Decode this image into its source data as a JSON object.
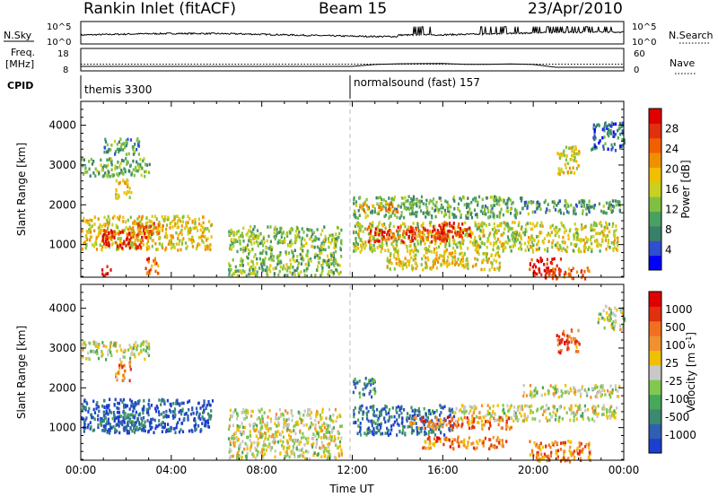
{
  "header": {
    "station": "Rankin Inlet (fitACF)",
    "beam": "Beam 15",
    "date": "23/Apr/2010"
  },
  "strip_nsky": {
    "left_label": "N.Sky",
    "right_label": "N.Search",
    "left_ticks": [
      "10^5",
      "10^0"
    ],
    "right_ticks": [
      "10^5",
      "10^0"
    ]
  },
  "strip_freq": {
    "left_label_1": "Freq.",
    "left_label_2": "[MHz]",
    "right_label": "Nave",
    "left_ticks": [
      "18",
      "8"
    ],
    "right_ticks": [
      "60",
      "0"
    ],
    "freq_value": 10,
    "nave_value": 18
  },
  "cpid": {
    "label": "CPID",
    "modes": [
      {
        "name": "themis 3300",
        "start_hour": 0
      },
      {
        "name": "normalsound (fast) 157",
        "start_hour": 12
      }
    ]
  },
  "chart_data": [
    {
      "type": "heatmap",
      "name": "power",
      "ylabel": "Slant Range [km]",
      "xlabel": "Time UT",
      "x_ticks": [
        "00:00",
        "04:00",
        "08:00",
        "12:00",
        "16:00",
        "20:00",
        "00:00"
      ],
      "xlim_hours": [
        0,
        24
      ],
      "y_ticks": [
        1000,
        2000,
        3000,
        4000
      ],
      "ylim": [
        180,
        4600
      ],
      "colorbar": {
        "label": "Power [dB]",
        "ticks": [
          "4",
          "8",
          "12",
          "16",
          "20",
          "24",
          "28"
        ],
        "colors": [
          "#0000ff",
          "#2f4fd0",
          "#3a7f6a",
          "#4aa060",
          "#7fc040",
          "#c8d020",
          "#f0c000",
          "#f09000",
          "#f06000",
          "#e03010",
          "#e00000"
        ]
      },
      "regions": [
        {
          "t0": 0.0,
          "t1": 5.8,
          "r0": 900,
          "r1": 1750,
          "level": 0.55
        },
        {
          "t0": 0.9,
          "t1": 2.8,
          "r0": 950,
          "r1": 1400,
          "level": 0.92
        },
        {
          "t0": 2.2,
          "t1": 3.6,
          "r0": 1200,
          "r1": 1600,
          "level": 0.75
        },
        {
          "t0": 0.0,
          "t1": 3.0,
          "r0": 2750,
          "r1": 3200,
          "level": 0.35
        },
        {
          "t0": 1.0,
          "t1": 2.6,
          "r0": 3300,
          "r1": 3700,
          "level": 0.3
        },
        {
          "t0": 1.5,
          "t1": 2.2,
          "r0": 2200,
          "r1": 2700,
          "level": 0.6
        },
        {
          "t0": 0.9,
          "t1": 1.3,
          "r0": 250,
          "r1": 500,
          "level": 0.95
        },
        {
          "t0": 2.8,
          "t1": 3.4,
          "r0": 300,
          "r1": 700,
          "level": 0.8
        },
        {
          "t0": 12.0,
          "t1": 23.7,
          "r0": 850,
          "r1": 1600,
          "level": 0.5
        },
        {
          "t0": 12.5,
          "t1": 16.2,
          "r0": 1100,
          "r1": 1500,
          "level": 0.85
        },
        {
          "t0": 15.8,
          "t1": 17.2,
          "r0": 1200,
          "r1": 1600,
          "level": 0.9
        },
        {
          "t0": 12.0,
          "t1": 19.5,
          "r0": 1700,
          "r1": 2250,
          "level": 0.35
        },
        {
          "t0": 12.3,
          "t1": 14.0,
          "r0": 1850,
          "r1": 2100,
          "level": 0.65
        },
        {
          "t0": 19.5,
          "t1": 23.8,
          "r0": 1800,
          "r1": 2150,
          "level": 0.3
        },
        {
          "t0": 13.5,
          "t1": 18.5,
          "r0": 400,
          "r1": 850,
          "level": 0.55
        },
        {
          "t0": 19.8,
          "t1": 21.2,
          "r0": 250,
          "r1": 700,
          "level": 0.92
        },
        {
          "t0": 20.5,
          "t1": 22.5,
          "r0": 180,
          "r1": 450,
          "level": 0.8
        },
        {
          "t0": 22.5,
          "t1": 24.0,
          "r0": 3400,
          "r1": 4100,
          "level": 0.2
        },
        {
          "t0": 21.0,
          "t1": 22.0,
          "r0": 2800,
          "r1": 3500,
          "level": 0.55
        },
        {
          "t0": 6.5,
          "t1": 11.5,
          "r0": 250,
          "r1": 1500,
          "level": 0.4
        }
      ]
    },
    {
      "type": "heatmap",
      "name": "velocity",
      "ylabel": "Slant Range [km]",
      "xlabel": "Time UT",
      "x_ticks": [
        "00:00",
        "04:00",
        "08:00",
        "12:00",
        "16:00",
        "20:00",
        "00:00"
      ],
      "xlim_hours": [
        0,
        24
      ],
      "y_ticks": [
        1000,
        2000,
        3000,
        4000
      ],
      "ylim": [
        180,
        4600
      ],
      "colorbar": {
        "label": "Velocity [m s^-1]",
        "ticks": [
          "1000",
          "500",
          "100",
          "25",
          "-25",
          "-100",
          "-500",
          "-1000"
        ],
        "colors": [
          "#1c3fd0",
          "#2f5fb0",
          "#3a8a70",
          "#48a85a",
          "#80c850",
          "#c8c8c8",
          "#f0c000",
          "#f09030",
          "#f07020",
          "#e03010",
          "#e00000"
        ]
      },
      "regions": [
        {
          "t0": 0.0,
          "t1": 5.8,
          "r0": 900,
          "r1": 1750,
          "level": 0.1
        },
        {
          "t0": 0.9,
          "t1": 2.8,
          "r0": 950,
          "r1": 1400,
          "level": 0.2
        },
        {
          "t0": 0.0,
          "t1": 3.0,
          "r0": 2750,
          "r1": 3200,
          "level": 0.5
        },
        {
          "t0": 1.5,
          "t1": 2.2,
          "r0": 2200,
          "r1": 2700,
          "level": 0.7
        },
        {
          "t0": 12.0,
          "t1": 16.5,
          "r0": 850,
          "r1": 1600,
          "level": 0.15
        },
        {
          "t0": 16.5,
          "t1": 23.7,
          "r0": 1200,
          "r1": 1600,
          "level": 0.5
        },
        {
          "t0": 14.5,
          "t1": 19.0,
          "r0": 1000,
          "r1": 1300,
          "level": 0.75
        },
        {
          "t0": 12.0,
          "t1": 13.0,
          "r0": 1800,
          "r1": 2300,
          "level": 0.25
        },
        {
          "t0": 19.5,
          "t1": 23.8,
          "r0": 1800,
          "r1": 2100,
          "level": 0.5
        },
        {
          "t0": 15.0,
          "t1": 18.8,
          "r0": 500,
          "r1": 800,
          "level": 0.75
        },
        {
          "t0": 19.8,
          "t1": 22.5,
          "r0": 180,
          "r1": 700,
          "level": 0.72
        },
        {
          "t0": 22.8,
          "t1": 24.0,
          "r0": 3500,
          "r1": 4100,
          "level": 0.5
        },
        {
          "t0": 21.0,
          "t1": 22.0,
          "r0": 2900,
          "r1": 3500,
          "level": 0.8
        },
        {
          "t0": 6.5,
          "t1": 11.5,
          "r0": 250,
          "r1": 1500,
          "level": 0.5
        }
      ]
    }
  ]
}
